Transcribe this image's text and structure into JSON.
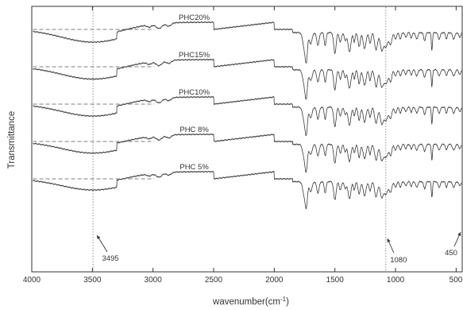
{
  "chart_data": {
    "type": "line",
    "title": "",
    "xlabel_main": "wavenumber(cm",
    "xlabel_sup": "-1",
    "xlabel_end": ")",
    "ylabel": "Transmittance",
    "xlim": [
      4000,
      450
    ],
    "x_ticks": [
      4000,
      3500,
      3000,
      2500,
      2000,
      1500,
      1000,
      500
    ],
    "x_tick_labels": [
      "4000",
      "3500",
      "3000",
      "2500",
      "2000",
      "1500",
      "1000",
      "500"
    ],
    "grid": false,
    "legend": "none",
    "series": [
      {
        "name": "PHC20%",
        "offset": 0
      },
      {
        "name": "PHC15%",
        "offset": 1
      },
      {
        "name": "PHC10%",
        "offset": 2
      },
      {
        "name": "PHC 8%",
        "offset": 3
      },
      {
        "name": "PHC 5%",
        "offset": 4
      }
    ],
    "annotations": [
      {
        "label": "3495",
        "x": 3495
      },
      {
        "label": "1080",
        "x": 1080
      },
      {
        "label": "450",
        "x": 450
      }
    ],
    "color": "#3a3a3a"
  }
}
